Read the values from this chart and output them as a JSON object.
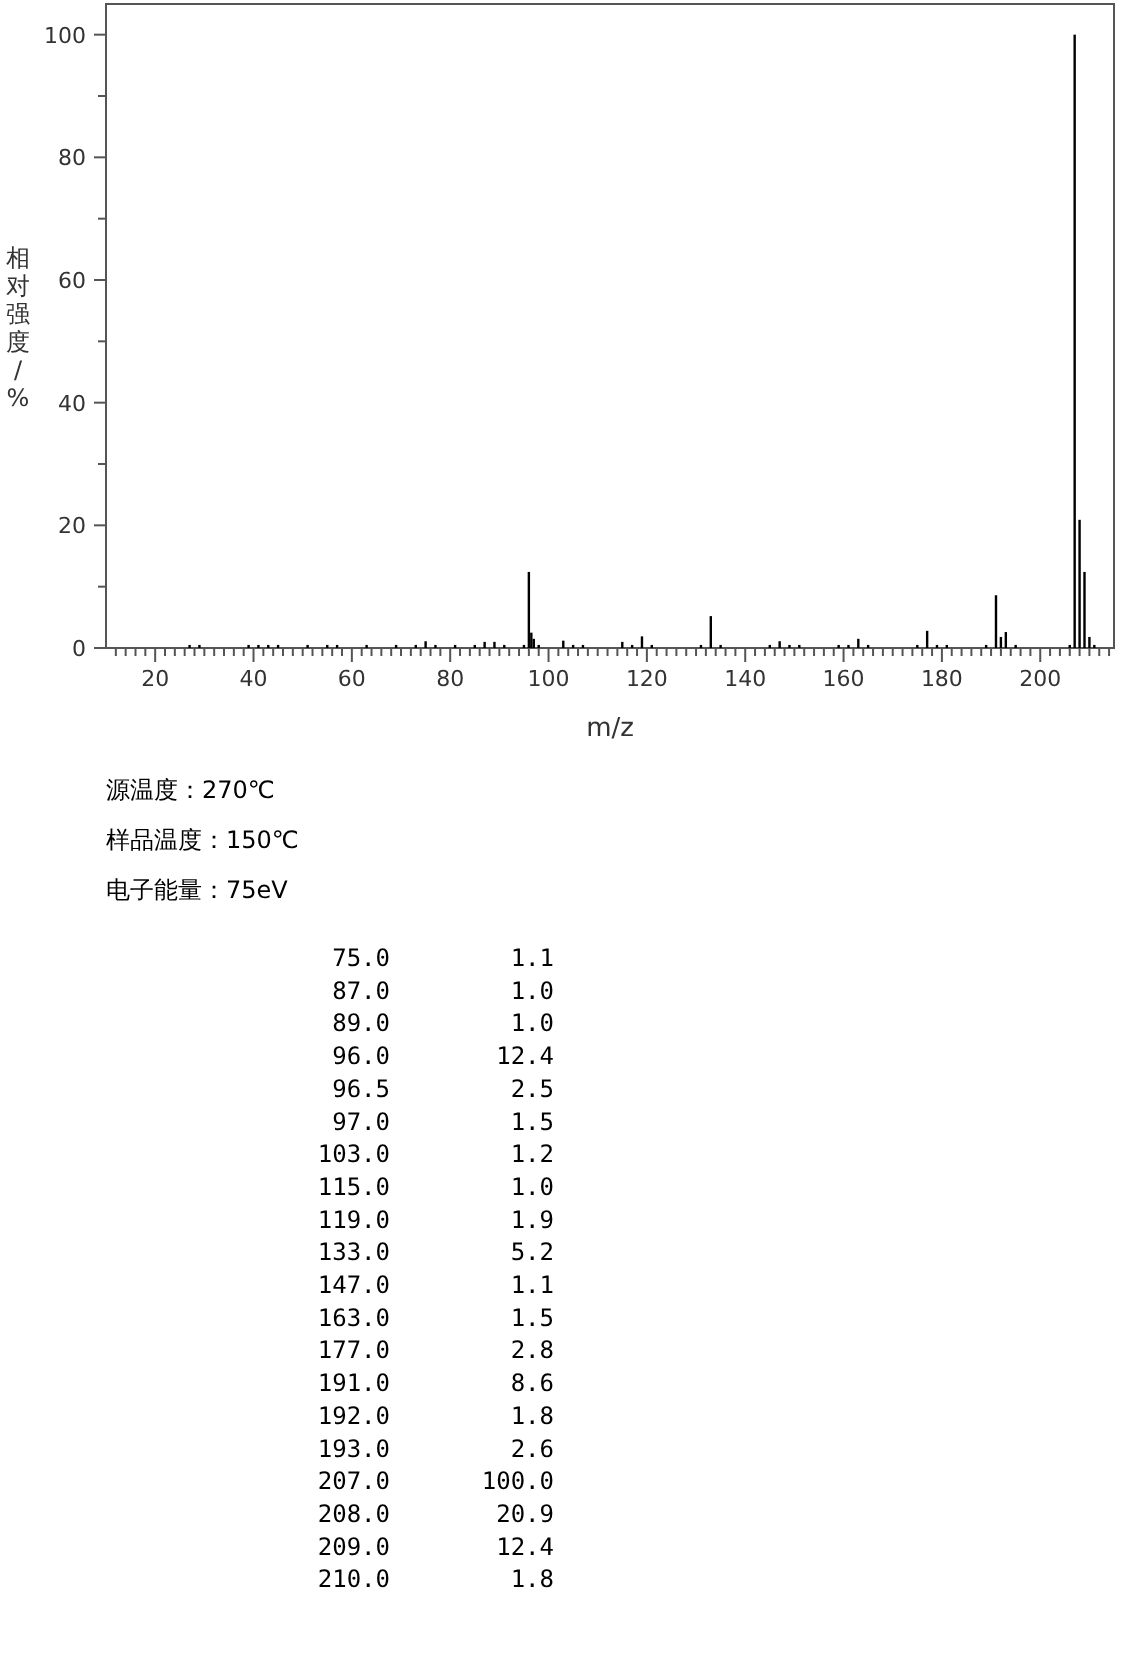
{
  "chart_data": [
    {
      "type": "bar",
      "ylabel": "相对强度/%",
      "xlabel": "m/z",
      "x": [
        27,
        29,
        39,
        41,
        43,
        45,
        51,
        55,
        57,
        63,
        69,
        73,
        75,
        77,
        81,
        85,
        87,
        89,
        91,
        95,
        96,
        96.5,
        97,
        98,
        103,
        105,
        107,
        115,
        117,
        119,
        121,
        131,
        133,
        135,
        145,
        147,
        149,
        151,
        159,
        161,
        163,
        165,
        175,
        177,
        179,
        181,
        189,
        191,
        192,
        193,
        195,
        206,
        207,
        208,
        209,
        210,
        211
      ],
      "values": [
        0.5,
        0.5,
        0.5,
        0.5,
        0.5,
        0.5,
        0.5,
        0.5,
        0.5,
        0.5,
        0.5,
        0.5,
        1.1,
        0.5,
        0.5,
        0.5,
        1.0,
        1.0,
        0.5,
        0.5,
        12.4,
        2.5,
        1.5,
        0.5,
        1.2,
        0.5,
        0.5,
        1.0,
        0.5,
        1.9,
        0.5,
        0.5,
        5.2,
        0.5,
        0.5,
        1.1,
        0.5,
        0.5,
        0.5,
        0.5,
        1.5,
        0.5,
        0.5,
        2.8,
        0.5,
        0.5,
        0.5,
        8.6,
        1.8,
        2.6,
        0.5,
        0.5,
        100.0,
        20.9,
        12.4,
        1.8,
        0.5
      ],
      "color": "#000000",
      "xlim": [
        10,
        215
      ],
      "ylim": [
        0,
        105
      ],
      "xticks": [
        {
          "value": 12,
          "label": null
        },
        {
          "value": 14,
          "label": null
        },
        {
          "value": 16,
          "label": null
        },
        {
          "value": 18,
          "label": null
        },
        20,
        {
          "value": 22,
          "label": null
        },
        {
          "value": 24,
          "label": null
        },
        {
          "value": 26,
          "label": null
        },
        {
          "value": 28,
          "label": null
        },
        {
          "value": 30,
          "label": null
        },
        {
          "value": 32,
          "label": null
        },
        {
          "value": 34,
          "label": null
        },
        {
          "value": 36,
          "label": null
        },
        {
          "value": 38,
          "label": null
        },
        40,
        {
          "value": 42,
          "label": null
        },
        {
          "value": 44,
          "label": null
        },
        {
          "value": 46,
          "label": null
        },
        {
          "value": 48,
          "label": null
        },
        {
          "value": 50,
          "label": null
        },
        {
          "value": 52,
          "label": null
        },
        {
          "value": 54,
          "label": null
        },
        {
          "value": 56,
          "label": null
        },
        {
          "value": 58,
          "label": null
        },
        60,
        {
          "value": 62,
          "label": null
        },
        {
          "value": 64,
          "label": null
        },
        {
          "value": 66,
          "label": null
        },
        {
          "value": 68,
          "label": null
        },
        {
          "value": 70,
          "label": null
        },
        {
          "value": 72,
          "label": null
        },
        {
          "value": 74,
          "label": null
        },
        {
          "value": 76,
          "label": null
        },
        {
          "value": 78,
          "label": null
        },
        80,
        {
          "value": 82,
          "label": null
        },
        {
          "value": 84,
          "label": null
        },
        {
          "value": 86,
          "label": null
        },
        {
          "value": 88,
          "label": null
        },
        {
          "value": 90,
          "label": null
        },
        {
          "value": 92,
          "label": null
        },
        {
          "value": 94,
          "label": null
        },
        {
          "value": 96,
          "label": null
        },
        {
          "value": 98,
          "label": null
        },
        100,
        {
          "value": 102,
          "label": null
        },
        {
          "value": 104,
          "label": null
        },
        {
          "value": 106,
          "label": null
        },
        {
          "value": 108,
          "label": null
        },
        {
          "value": 110,
          "label": null
        },
        {
          "value": 112,
          "label": null
        },
        {
          "value": 114,
          "label": null
        },
        {
          "value": 116,
          "label": null
        },
        {
          "value": 118,
          "label": null
        },
        120,
        {
          "value": 122,
          "label": null
        },
        {
          "value": 124,
          "label": null
        },
        {
          "value": 126,
          "label": null
        },
        {
          "value": 128,
          "label": null
        },
        {
          "value": 130,
          "label": null
        },
        {
          "value": 132,
          "label": null
        },
        {
          "value": 134,
          "label": null
        },
        {
          "value": 136,
          "label": null
        },
        {
          "value": 138,
          "label": null
        },
        140,
        {
          "value": 142,
          "label": null
        },
        {
          "value": 144,
          "label": null
        },
        {
          "value": 146,
          "label": null
        },
        {
          "value": 148,
          "label": null
        },
        {
          "value": 150,
          "label": null
        },
        {
          "value": 152,
          "label": null
        },
        {
          "value": 154,
          "label": null
        },
        {
          "value": 156,
          "label": null
        },
        {
          "value": 158,
          "label": null
        },
        160,
        {
          "value": 162,
          "label": null
        },
        {
          "value": 164,
          "label": null
        },
        {
          "value": 166,
          "label": null
        },
        {
          "value": 168,
          "label": null
        },
        {
          "value": 170,
          "label": null
        },
        {
          "value": 172,
          "label": null
        },
        {
          "value": 174,
          "label": null
        },
        {
          "value": 176,
          "label": null
        },
        {
          "value": 178,
          "label": null
        },
        180,
        {
          "value": 182,
          "label": null
        },
        {
          "value": 184,
          "label": null
        },
        {
          "value": 186,
          "label": null
        },
        {
          "value": 188,
          "label": null
        },
        {
          "value": 190,
          "label": null
        },
        {
          "value": 192,
          "label": null
        },
        {
          "value": 194,
          "label": null
        },
        {
          "value": 196,
          "label": null
        },
        {
          "value": 198,
          "label": null
        },
        200,
        {
          "value": 202,
          "label": null
        },
        {
          "value": 204,
          "label": null
        },
        {
          "value": 206,
          "label": null
        },
        {
          "value": 208,
          "label": null
        },
        {
          "value": 210,
          "label": null
        },
        {
          "value": 212,
          "label": null
        },
        {
          "value": 214,
          "label": null
        }
      ],
      "yticks": [
        0,
        {
          "value": 10,
          "label": null
        },
        20,
        {
          "value": 30,
          "label": null
        },
        40,
        {
          "value": 50,
          "label": null
        },
        60,
        {
          "value": 70,
          "label": null
        },
        80,
        {
          "value": 90,
          "label": null
        },
        100
      ],
      "grid": false
    },
    {
      "type": "other",
      "annotations": [
        "源温度：270℃",
        "样品温度：150℃",
        "电子能量：75eV"
      ]
    },
    {
      "type": "other",
      "categories": [
        "75.0",
        "87.0",
        "89.0",
        "96.0",
        "96.5",
        "97.0",
        "103.0",
        "115.0",
        "119.0",
        "133.0",
        "147.0",
        "163.0",
        "177.0",
        "191.0",
        "192.0",
        "193.0",
        "207.0",
        "208.0",
        "209.0",
        "210.0"
      ],
      "value_labels": [
        "1.1",
        "1.0",
        "1.0",
        "12.4",
        "2.5",
        "1.5",
        "1.2",
        "1.0",
        "1.9",
        "5.2",
        "1.1",
        "1.5",
        "2.8",
        "8.6",
        "1.8",
        "2.6",
        "100.0",
        "20.9",
        "12.4",
        "1.8"
      ]
    }
  ]
}
